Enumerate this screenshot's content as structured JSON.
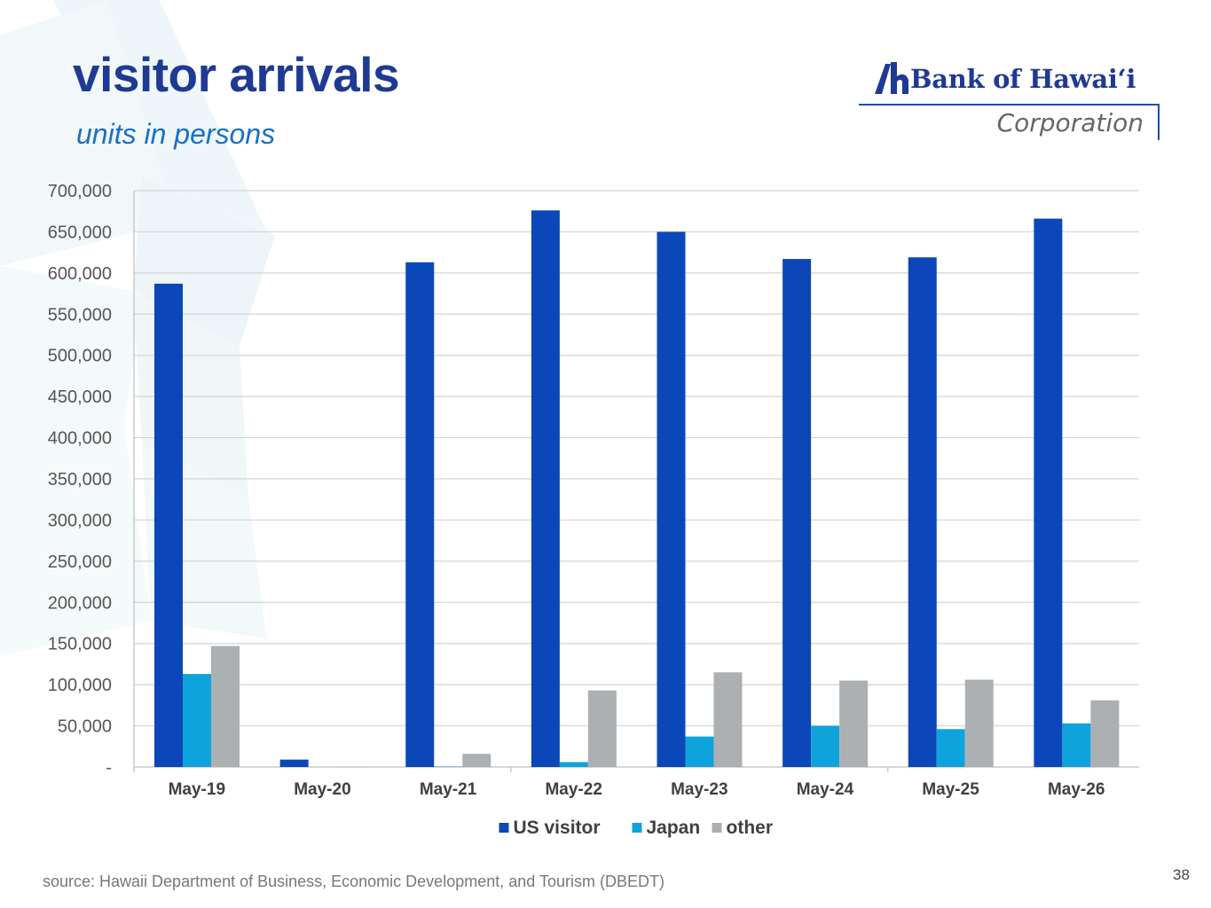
{
  "header": {
    "title": "visitor arrivals",
    "subtitle": "units in persons"
  },
  "logo": {
    "name": "Bank of Hawaiʻi",
    "tagline": "Corporation",
    "brand_color": "#1f3a93"
  },
  "footer": {
    "source": "source: Hawaii Department of Business, Economic Development, and Tourism (DBEDT)",
    "page_number": "38"
  },
  "chart_data": {
    "type": "bar",
    "title": "",
    "xlabel": "",
    "ylabel": "",
    "categories": [
      "May-19",
      "May-20",
      "May-21",
      "May-22",
      "May-23",
      "May-24",
      "May-25",
      "May-26"
    ],
    "series": [
      {
        "name": "US visitor",
        "color": "#0b47b8",
        "values": [
          587000,
          9000,
          613000,
          676000,
          650000,
          617000,
          619000,
          666000
        ]
      },
      {
        "name": "Japan",
        "color": "#0fa3dc",
        "values": [
          113000,
          0,
          500,
          6000,
          37000,
          50000,
          46000,
          53000
        ]
      },
      {
        "name": "other",
        "color": "#acb0b2",
        "values": [
          147000,
          500,
          16000,
          93000,
          115000,
          105000,
          106000,
          81000
        ]
      }
    ],
    "ylim": [
      0,
      700000
    ],
    "yticks": [
      0,
      50000,
      100000,
      150000,
      200000,
      250000,
      300000,
      350000,
      400000,
      450000,
      500000,
      550000,
      600000,
      650000,
      700000
    ],
    "ytick_labels": [
      "-",
      "50,000",
      "100,000",
      "150,000",
      "200,000",
      "250,000",
      "300,000",
      "350,000",
      "400,000",
      "450,000",
      "500,000",
      "550,000",
      "600,000",
      "650,000",
      "700,000"
    ],
    "grid": true,
    "legend": "bottom-center"
  }
}
